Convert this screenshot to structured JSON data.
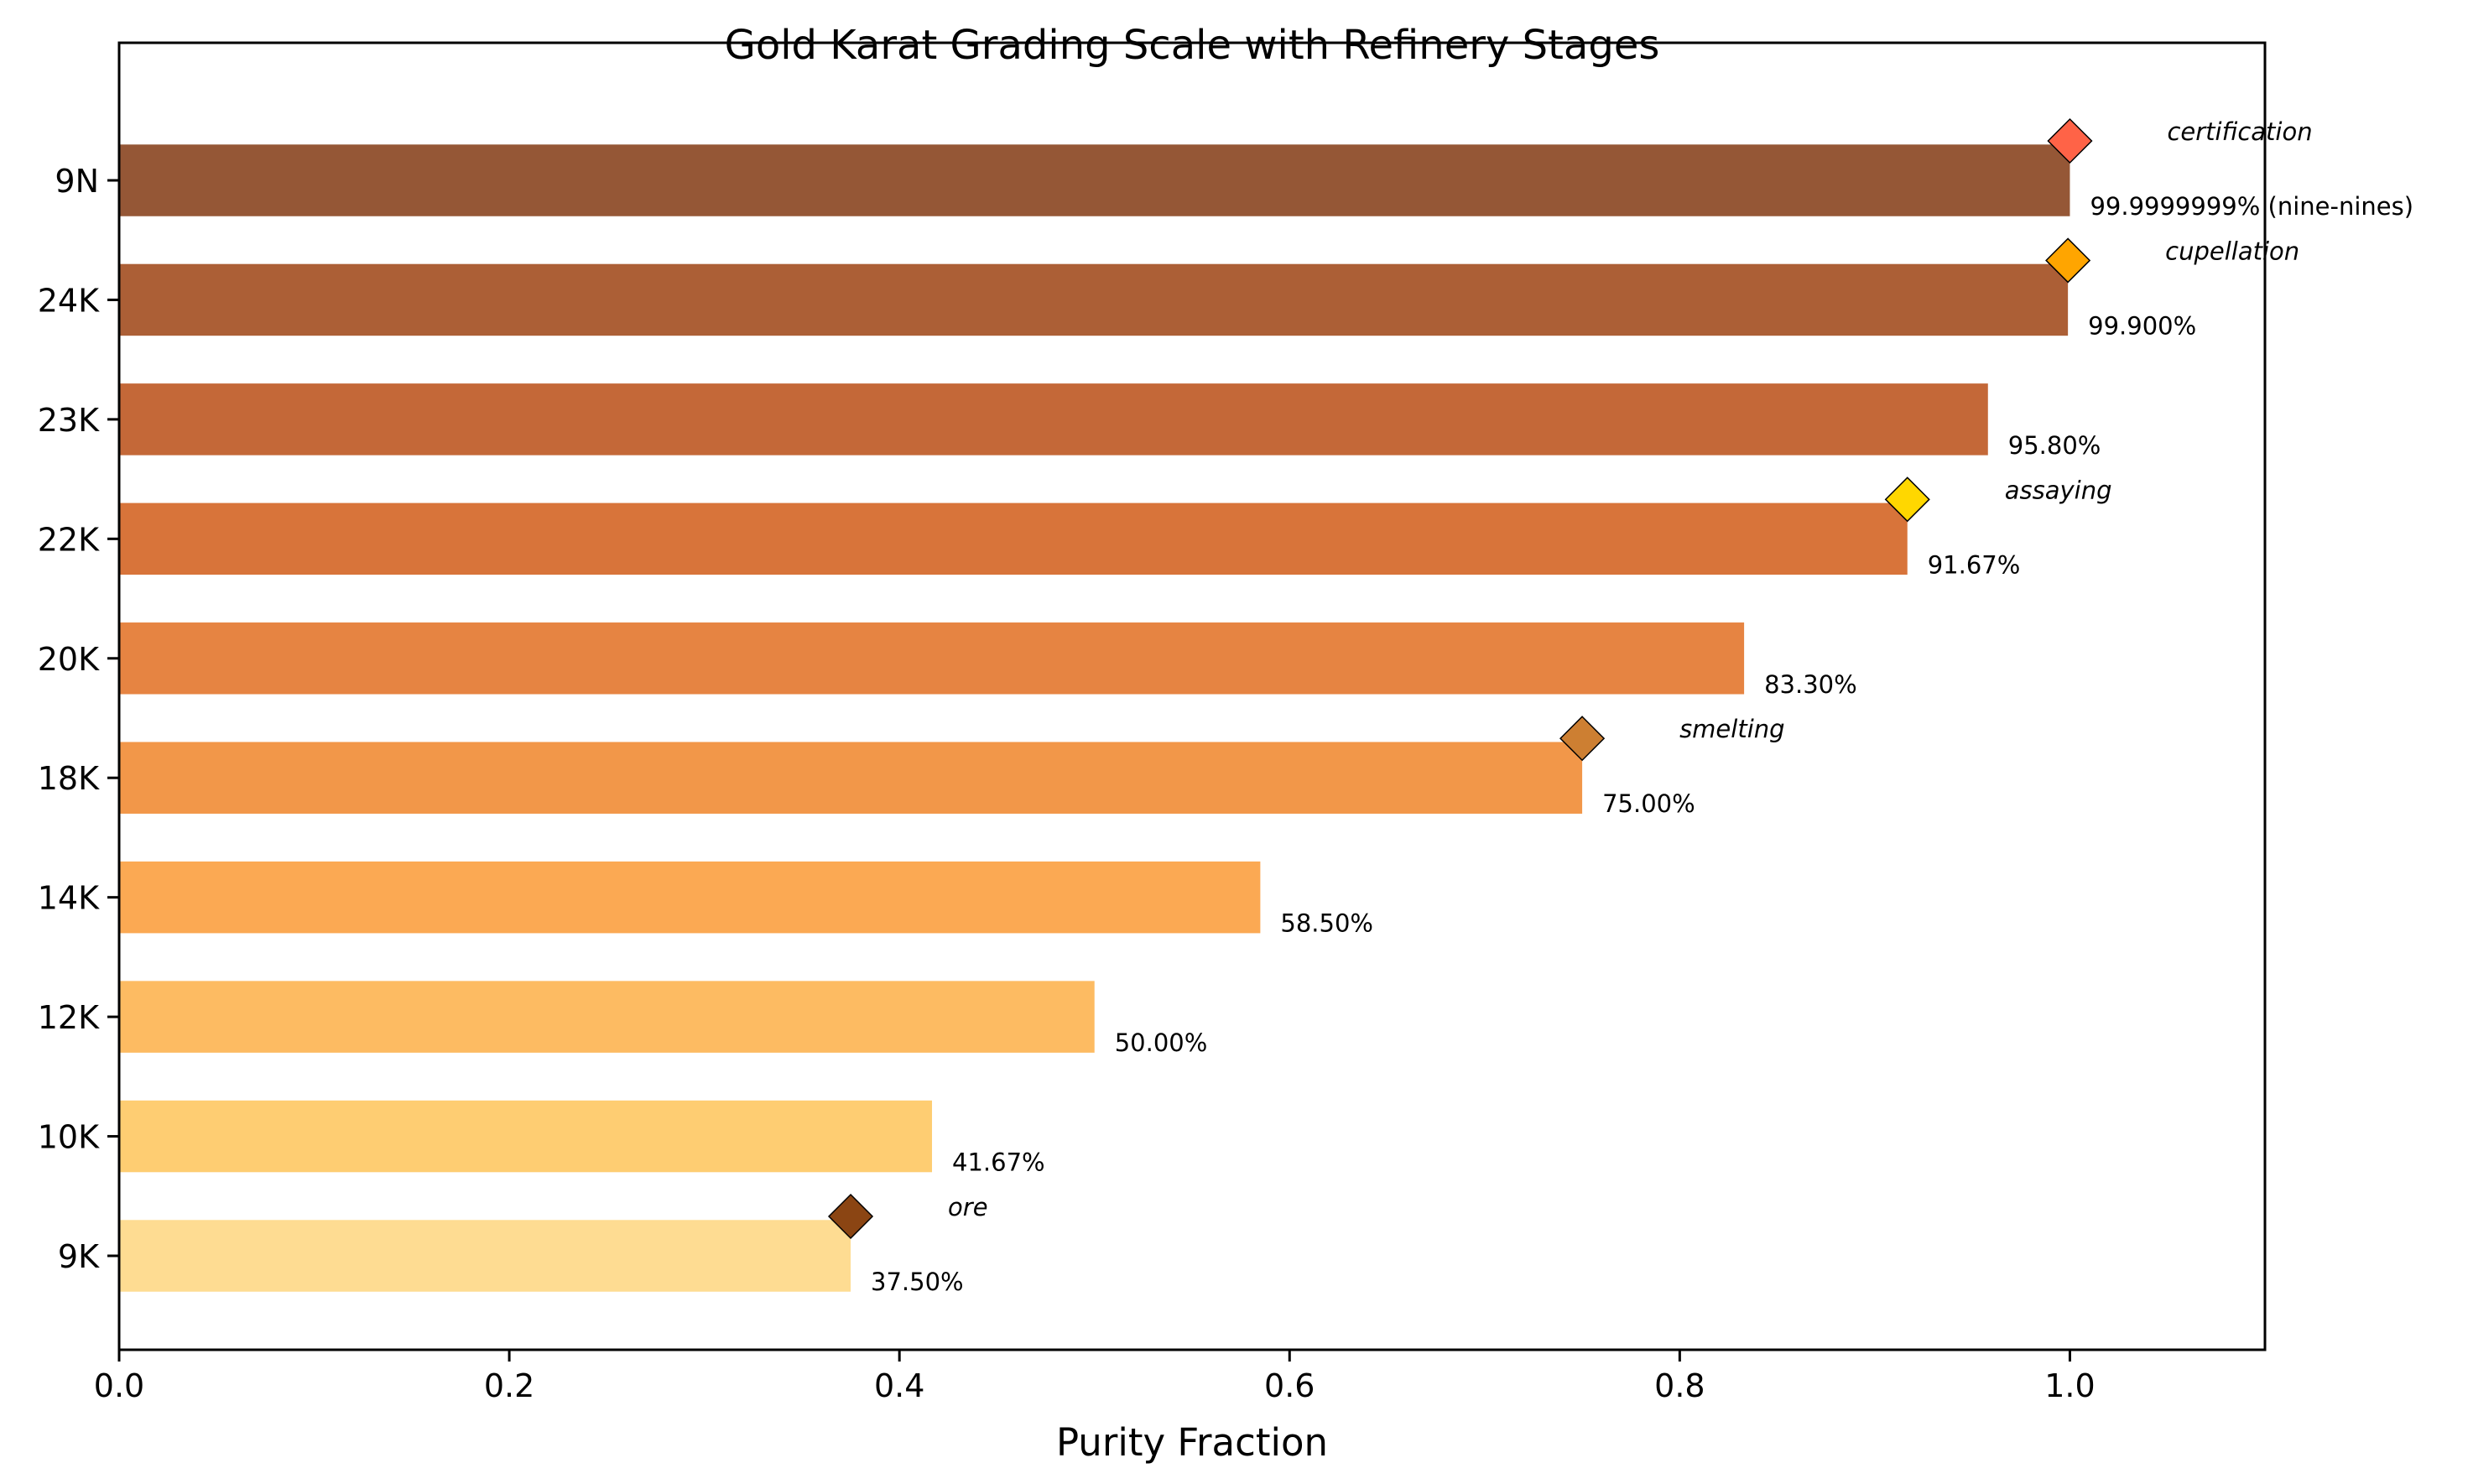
{
  "chart_data": {
    "type": "bar",
    "orientation": "horizontal",
    "title": "Gold Karat Grading Scale with Refinery Stages",
    "xlabel": "Purity Fraction",
    "ylabel": "",
    "xlim": [
      0,
      1.1
    ],
    "xticks": [
      "0.0",
      "0.2",
      "0.4",
      "0.6",
      "0.8",
      "1.0"
    ],
    "grid": false,
    "categories": [
      "9K",
      "10K",
      "12K",
      "14K",
      "18K",
      "20K",
      "22K",
      "23K",
      "24K",
      "9N"
    ],
    "values": [
      0.375,
      0.4167,
      0.5,
      0.585,
      0.75,
      0.833,
      0.9167,
      0.958,
      0.999,
      0.999999999
    ],
    "value_labels": [
      "37.50%",
      "41.67%",
      "50.00%",
      "58.50%",
      "75.00%",
      "83.30%",
      "91.67%",
      "95.80%",
      "99.900%",
      "99.9999999% (nine-nines)"
    ],
    "bar_colors": [
      "#fedc92",
      "#fecd72",
      "#fdbb62",
      "#fba953",
      "#f29749",
      "#e68442",
      "#d8743a",
      "#c46838",
      "#ac5f36",
      "#955736"
    ],
    "refinery_stages": [
      {
        "stage": "ore",
        "category": "9K",
        "value": 0.375,
        "color": "#8b4513"
      },
      {
        "stage": "smelting",
        "category": "18K",
        "value": 0.75,
        "color": "#cd7f32"
      },
      {
        "stage": "assaying",
        "category": "22K",
        "value": 0.9167,
        "color": "#ffd700"
      },
      {
        "stage": "cupellation",
        "category": "24K",
        "value": 0.999,
        "color": "#ffa500"
      },
      {
        "stage": "certification",
        "category": "9N",
        "value": 0.999999999,
        "color": "#ff6347"
      }
    ]
  }
}
